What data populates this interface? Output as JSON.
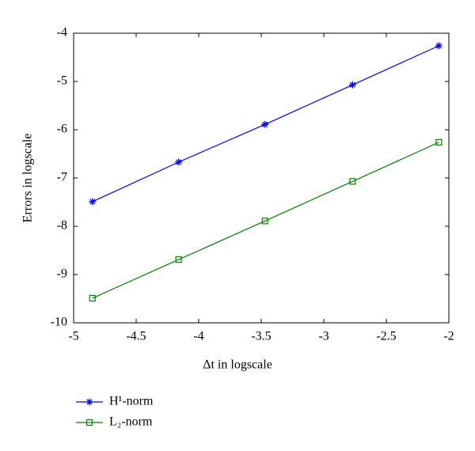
{
  "chart_data": {
    "type": "line",
    "xlabel": "Δt in logscale",
    "ylabel": "Errors in logscale",
    "xlim": [
      -5,
      -2
    ],
    "xticks": [
      -5,
      -4.5,
      -4,
      -3.5,
      -3,
      -2.5,
      -2
    ],
    "ylim": [
      -10,
      -4
    ],
    "yticks": [
      -10,
      -9,
      -8,
      -7,
      -6,
      -5,
      -4
    ],
    "grid": false,
    "legend": "below-left",
    "series": [
      {
        "name": "H¹-norm",
        "color": "#0000ff",
        "marker": "star",
        "x": [
          -4.85,
          -4.16,
          -3.47,
          -2.77,
          -2.08
        ],
        "values": [
          -7.49,
          -6.67,
          -5.89,
          -5.07,
          -4.26
        ]
      },
      {
        "name": "L₂-norm",
        "color": "#008000",
        "marker": "square",
        "x": [
          -4.85,
          -4.16,
          -3.47,
          -2.77,
          -2.08
        ],
        "values": [
          -9.49,
          -8.69,
          -7.89,
          -7.07,
          -6.26
        ]
      }
    ]
  }
}
